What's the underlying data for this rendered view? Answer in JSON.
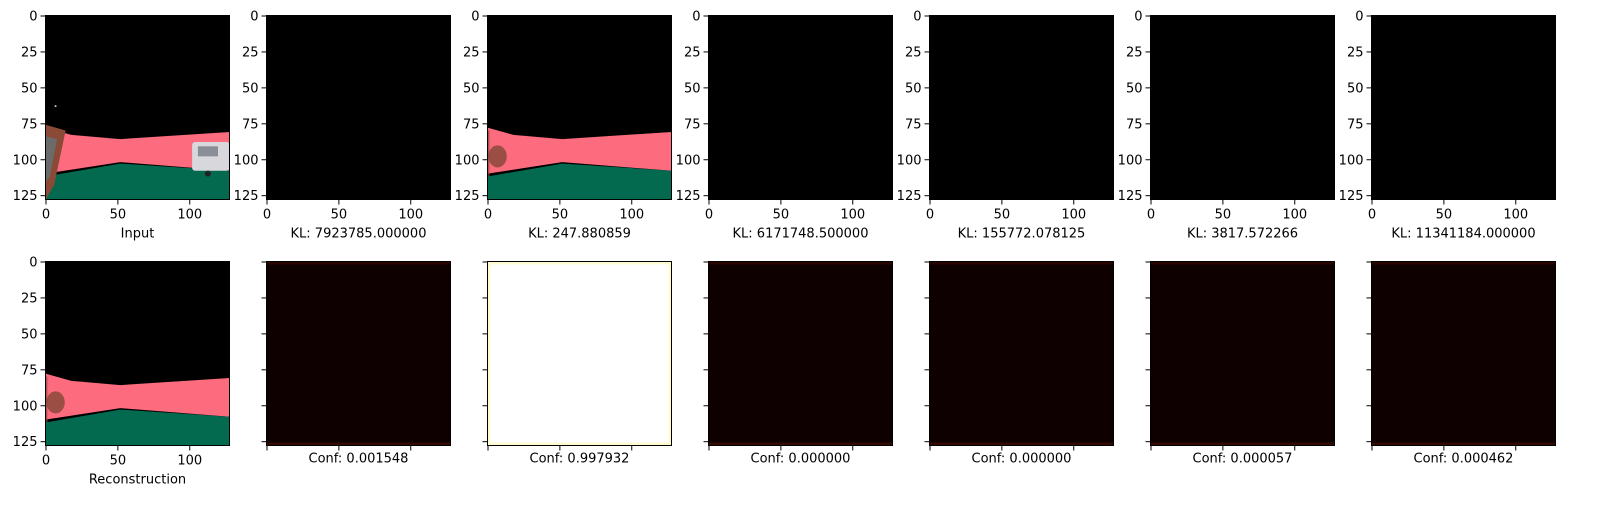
{
  "chart_data": [
    {
      "type": "image",
      "row": 0,
      "col": 0,
      "xlabel": "Input",
      "content": "input-scene",
      "x_ticks": [
        0,
        50,
        100
      ],
      "y_ticks": [
        0,
        25,
        50,
        75,
        100,
        125
      ],
      "xlim": [
        0,
        128
      ],
      "ylim": [
        128,
        0
      ]
    },
    {
      "type": "image",
      "row": 0,
      "col": 1,
      "xlabel": "KL: 7923785.000000",
      "content": "black",
      "x_ticks": [
        0,
        50,
        100
      ],
      "y_ticks": [
        0,
        25,
        50,
        75,
        100,
        125
      ],
      "xlim": [
        0,
        128
      ],
      "ylim": [
        128,
        0
      ]
    },
    {
      "type": "image",
      "row": 0,
      "col": 2,
      "xlabel": "KL: 247.880859",
      "content": "blurred-scene",
      "x_ticks": [
        0,
        50,
        100
      ],
      "y_ticks": [
        0,
        25,
        50,
        75,
        100,
        125
      ],
      "xlim": [
        0,
        128
      ],
      "ylim": [
        128,
        0
      ]
    },
    {
      "type": "image",
      "row": 0,
      "col": 3,
      "xlabel": "KL: 6171748.500000",
      "content": "black",
      "x_ticks": [
        0,
        50,
        100
      ],
      "y_ticks": [
        0,
        25,
        50,
        75,
        100,
        125
      ],
      "xlim": [
        0,
        128
      ],
      "ylim": [
        128,
        0
      ]
    },
    {
      "type": "image",
      "row": 0,
      "col": 4,
      "xlabel": "KL: 155772.078125",
      "content": "black",
      "x_ticks": [
        0,
        50,
        100
      ],
      "y_ticks": [
        0,
        25,
        50,
        75,
        100,
        125
      ],
      "xlim": [
        0,
        128
      ],
      "ylim": [
        128,
        0
      ]
    },
    {
      "type": "image",
      "row": 0,
      "col": 5,
      "xlabel": "KL: 3817.572266",
      "content": "black",
      "x_ticks": [
        0,
        50,
        100
      ],
      "y_ticks": [
        0,
        25,
        50,
        75,
        100,
        125
      ],
      "xlim": [
        0,
        128
      ],
      "ylim": [
        128,
        0
      ]
    },
    {
      "type": "image",
      "row": 0,
      "col": 6,
      "xlabel": "KL: 11341184.000000",
      "content": "black",
      "x_ticks": [
        0,
        50,
        100
      ],
      "y_ticks": [
        0,
        25,
        50,
        75,
        100,
        125
      ],
      "xlim": [
        0,
        128
      ],
      "ylim": [
        128,
        0
      ]
    },
    {
      "type": "image",
      "row": 1,
      "col": 0,
      "xlabel": "Reconstruction",
      "content": "blurred-scene",
      "x_ticks": [
        0,
        50,
        100
      ],
      "y_ticks": [
        0,
        25,
        50,
        75,
        100,
        125
      ],
      "xlim": [
        0,
        128
      ],
      "ylim": [
        128,
        0
      ]
    },
    {
      "type": "image",
      "row": 1,
      "col": 1,
      "xlabel": "Conf: 0.001548",
      "content": "dark-conf",
      "x_ticks": [
        0,
        50,
        100
      ],
      "y_ticks": [
        0,
        25,
        50,
        75,
        100,
        125
      ],
      "xlim": [
        0,
        128
      ],
      "ylim": [
        128,
        0
      ],
      "tick_labels": false
    },
    {
      "type": "image",
      "row": 1,
      "col": 2,
      "xlabel": "Conf: 0.997932",
      "content": "bright-conf",
      "x_ticks": [
        0,
        50,
        100
      ],
      "y_ticks": [
        0,
        25,
        50,
        75,
        100,
        125
      ],
      "xlim": [
        0,
        128
      ],
      "ylim": [
        128,
        0
      ],
      "tick_labels": false
    },
    {
      "type": "image",
      "row": 1,
      "col": 3,
      "xlabel": "Conf: 0.000000",
      "content": "dark-conf",
      "x_ticks": [
        0,
        50,
        100
      ],
      "y_ticks": [
        0,
        25,
        50,
        75,
        100,
        125
      ],
      "xlim": [
        0,
        128
      ],
      "ylim": [
        128,
        0
      ],
      "tick_labels": false
    },
    {
      "type": "image",
      "row": 1,
      "col": 4,
      "xlabel": "Conf: 0.000000",
      "content": "dark-conf",
      "x_ticks": [
        0,
        50,
        100
      ],
      "y_ticks": [
        0,
        25,
        50,
        75,
        100,
        125
      ],
      "xlim": [
        0,
        128
      ],
      "ylim": [
        128,
        0
      ],
      "tick_labels": false
    },
    {
      "type": "image",
      "row": 1,
      "col": 5,
      "xlabel": "Conf: 0.000057",
      "content": "dark-conf",
      "x_ticks": [
        0,
        50,
        100
      ],
      "y_ticks": [
        0,
        25,
        50,
        75,
        100,
        125
      ],
      "xlim": [
        0,
        128
      ],
      "ylim": [
        128,
        0
      ],
      "tick_labels": false
    },
    {
      "type": "image",
      "row": 1,
      "col": 6,
      "xlabel": "Conf: 0.000462",
      "content": "dark-conf",
      "x_ticks": [
        0,
        50,
        100
      ],
      "y_ticks": [
        0,
        25,
        50,
        75,
        100,
        125
      ],
      "xlim": [
        0,
        128
      ],
      "ylim": [
        128,
        0
      ],
      "tick_labels": false
    }
  ],
  "colors": {
    "road": "#fd6b7f",
    "ground": "#046a4f",
    "wall": "#8b4a35",
    "car": "#d8d8dc",
    "dark_conf": "#0f0000",
    "bright_conf": "#ffffff",
    "bright_edge": "#fffbd0"
  }
}
